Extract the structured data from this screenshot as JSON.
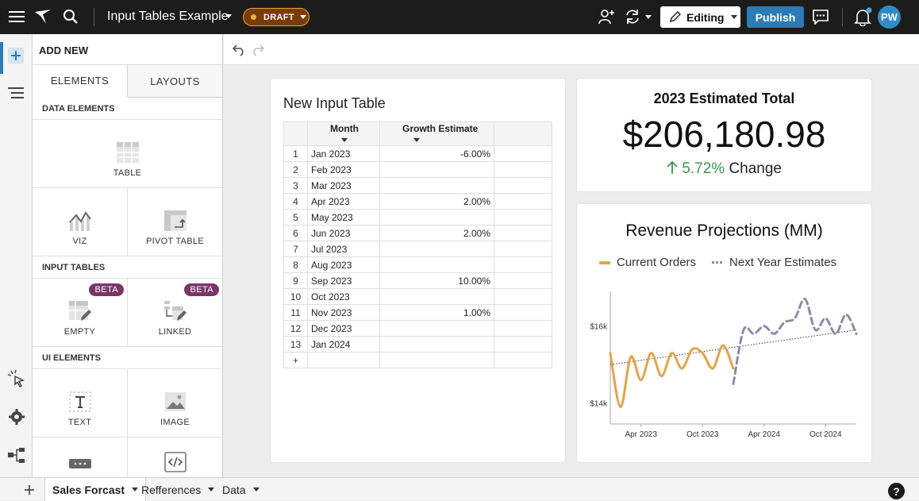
{
  "header": {
    "title": "Input Tables Example",
    "status": "DRAFT",
    "mode": "Editing",
    "publish": "Publish",
    "user_initials": "PW",
    "icons": [
      "menu-icon",
      "logo-icon",
      "search-icon",
      "add-user-icon",
      "sync-icon",
      "pencil-icon",
      "comment-icon",
      "bell-icon"
    ]
  },
  "panel": {
    "heading": "ADD NEW",
    "tabs": [
      "ELEMENTS",
      "LAYOUTS"
    ],
    "sections": {
      "data": "DATA ELEMENTS",
      "input": "INPUT TABLES",
      "ui": "UI ELEMENTS"
    },
    "tiles": {
      "table": "TABLE",
      "viz": "VIZ",
      "pivot": "PIVOT TABLE",
      "empty": "EMPTY",
      "linked": "LINKED",
      "text": "TEXT",
      "image": "IMAGE"
    },
    "beta": "BETA"
  },
  "input_table": {
    "title": "New Input Table",
    "columns": [
      "Month",
      "Growth Estimate"
    ],
    "rows": [
      {
        "idx": "1",
        "month": "Jan 2023",
        "growth": "-6.00%"
      },
      {
        "idx": "2",
        "month": "Feb 2023",
        "growth": ""
      },
      {
        "idx": "3",
        "month": "Mar 2023",
        "growth": ""
      },
      {
        "idx": "4",
        "month": "Apr 2023",
        "growth": "2.00%"
      },
      {
        "idx": "5",
        "month": "May 2023",
        "growth": ""
      },
      {
        "idx": "6",
        "month": "Jun 2023",
        "growth": "2.00%"
      },
      {
        "idx": "7",
        "month": "Jul 2023",
        "growth": ""
      },
      {
        "idx": "8",
        "month": "Aug 2023",
        "growth": ""
      },
      {
        "idx": "9",
        "month": "Sep 2023",
        "growth": "10.00%"
      },
      {
        "idx": "10",
        "month": "Oct 2023",
        "growth": ""
      },
      {
        "idx": "11",
        "month": "Nov 2023",
        "growth": "1.00%"
      },
      {
        "idx": "12",
        "month": "Dec 2023",
        "growth": ""
      },
      {
        "idx": "13",
        "month": "Jan 2024",
        "growth": ""
      }
    ],
    "add_row": "+"
  },
  "kpi": {
    "title": "2023 Estimated Total",
    "value": "$206,180.98",
    "change_value": "5.72%",
    "change_label": "Change",
    "change_color": "#3a9a4a"
  },
  "chart_data": {
    "type": "line",
    "title": "Revenue Projections (MM)",
    "series": [
      {
        "name": "Current Orders",
        "color": "#e5a346",
        "style": "solid",
        "x": [
          "2023-01",
          "2023-02",
          "2023-03",
          "2023-04",
          "2023-05",
          "2023-06",
          "2023-07",
          "2023-08",
          "2023-09",
          "2023-10",
          "2023-11",
          "2023-12",
          "2024-01"
        ],
        "y": [
          15.3,
          13.9,
          15.2,
          14.6,
          15.3,
          14.7,
          15.3,
          14.9,
          15.4,
          15.3,
          14.9,
          15.5,
          14.9
        ]
      },
      {
        "name": "Next Year Estimates",
        "color": "#8f8aa8",
        "style": "dashed",
        "x": [
          "2024-01",
          "2024-02",
          "2024-03",
          "2024-04",
          "2024-05",
          "2024-06",
          "2024-07",
          "2024-08",
          "2024-09",
          "2024-10",
          "2024-11",
          "2024-12",
          "2025-01"
        ],
        "y": [
          14.5,
          15.9,
          15.8,
          16.0,
          15.8,
          16.1,
          16.2,
          16.7,
          15.9,
          16.2,
          15.8,
          16.3,
          15.8
        ]
      }
    ],
    "trendline": {
      "color": "#333",
      "style": "dotted",
      "start": [
        "2023-01",
        15.0
      ],
      "end": [
        "2025-01",
        15.9
      ]
    },
    "x_ticks": [
      "Apr 2023",
      "Oct 2023",
      "Apr 2024",
      "Oct 2024"
    ],
    "y_ticks": [
      "$16k",
      "$14k"
    ],
    "legend_position": "top",
    "grid": false
  },
  "bottom_tabs": [
    "Sales Forcast",
    "Refferences",
    "Data"
  ],
  "help": "?"
}
